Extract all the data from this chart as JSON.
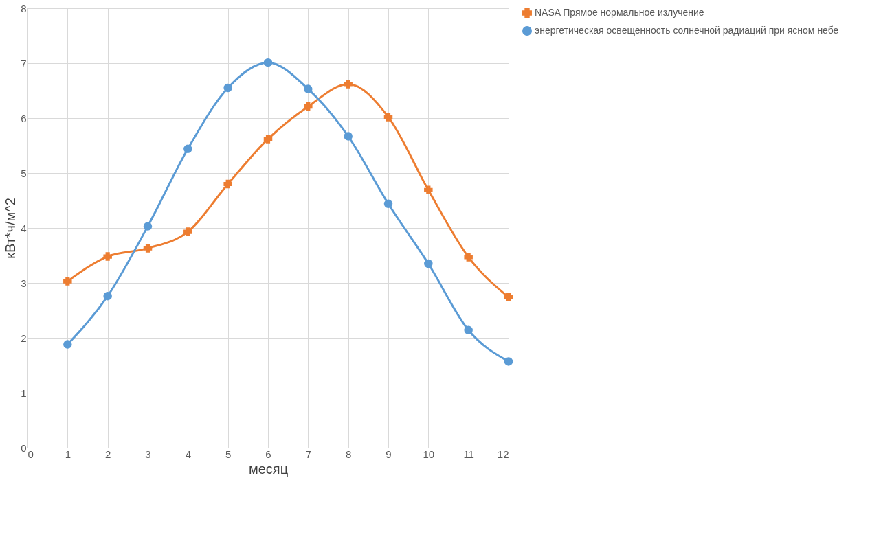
{
  "chart_data": {
    "type": "line",
    "xlabel": "месяц",
    "ylabel": "кВт*ч/м^2",
    "x": [
      1,
      2,
      3,
      4,
      5,
      6,
      7,
      8,
      9,
      10,
      11,
      12
    ],
    "series": [
      {
        "name": "NASA Прямое нормальное излучение",
        "color": "#ed7d31",
        "marker": "cross",
        "values": [
          3.03,
          3.48,
          3.63,
          3.93,
          4.8,
          5.62,
          6.21,
          6.62,
          6.02,
          4.69,
          3.47,
          2.74
        ]
      },
      {
        "name": "энергетическая освещенность солнечной радиаций при ясном небе",
        "color": "#5b9bd5",
        "marker": "circle",
        "values": [
          1.88,
          2.76,
          4.03,
          5.44,
          6.55,
          7.01,
          6.53,
          5.67,
          4.44,
          3.35,
          2.14,
          1.57
        ]
      }
    ],
    "xlim": [
      0,
      12
    ],
    "xticks": [
      0,
      1,
      2,
      3,
      4,
      5,
      6,
      7,
      8,
      9,
      10,
      11,
      12
    ],
    "ylim": [
      0,
      8
    ],
    "yticks": [
      0,
      1,
      2,
      3,
      4,
      5,
      6,
      7,
      8
    ],
    "grid": true,
    "legend": "right",
    "line_style": "solid"
  }
}
